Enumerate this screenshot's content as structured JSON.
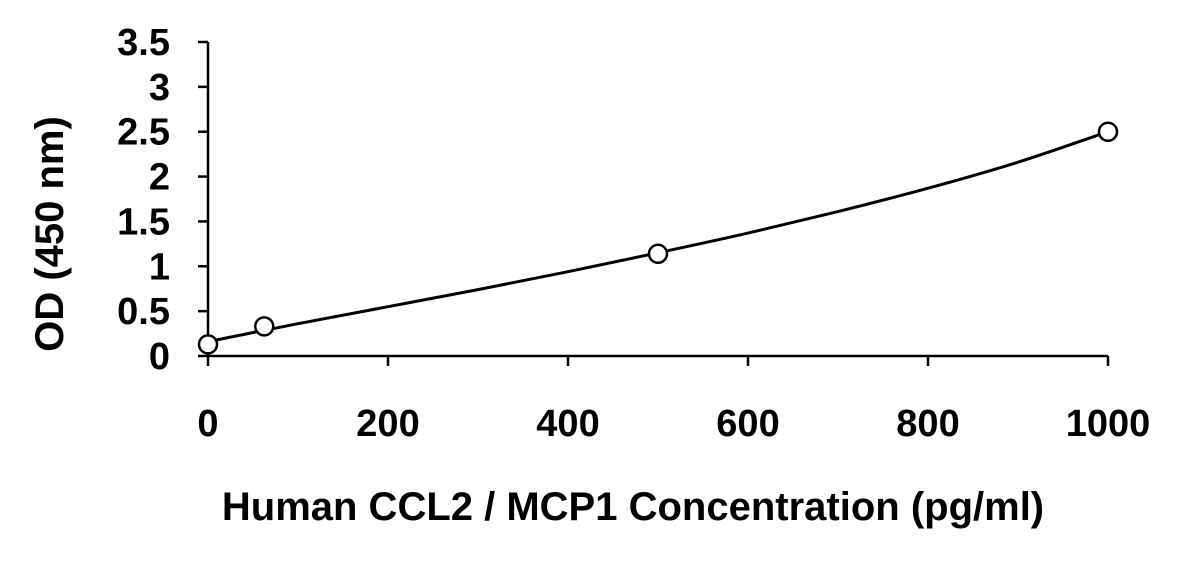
{
  "chart_data": {
    "type": "scatter",
    "title": "",
    "xlabel": "Human CCL2 / MCP1 Concentration (pg/ml)",
    "ylabel": "OD (450 nm)",
    "xlim": [
      0,
      1000
    ],
    "ylim": [
      0,
      3.5
    ],
    "x_ticks": [
      0,
      200,
      400,
      600,
      800,
      1000
    ],
    "y_ticks": [
      0,
      0.5,
      1,
      1.5,
      2,
      2.5,
      3,
      3.5
    ],
    "x_tick_labels": [
      "0",
      "200",
      "400",
      "600",
      "800",
      "1000"
    ],
    "y_tick_labels": [
      "0",
      "0.5",
      "1",
      "1.5",
      "2",
      "2.5",
      "3",
      "3.5"
    ],
    "grid": false,
    "legend": "none",
    "series": [
      {
        "marker": "open-circle",
        "x": [
          0,
          62.5,
          500,
          1000
        ],
        "y": [
          0.13,
          0.33,
          1.14,
          2.5
        ]
      }
    ],
    "fit_curve": {
      "style": "smooth-line",
      "x": [
        0,
        100,
        200,
        300,
        400,
        500,
        600,
        700,
        800,
        900,
        1000
      ],
      "y": [
        0.16,
        0.36,
        0.55,
        0.74,
        0.94,
        1.15,
        1.37,
        1.61,
        1.87,
        2.16,
        2.5
      ]
    }
  }
}
